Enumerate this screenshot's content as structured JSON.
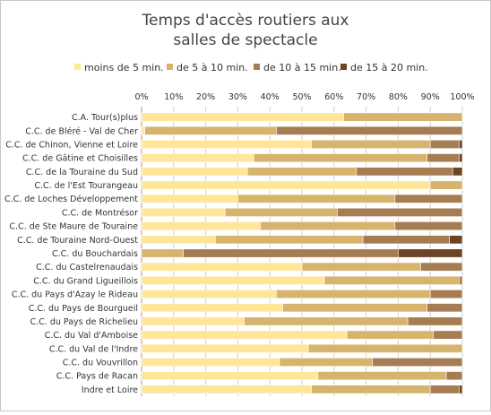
{
  "chart_data": {
    "type": "bar",
    "orientation": "horizontal",
    "stacked": "percent",
    "title": [
      "Temps d'accès routiers aux",
      "salles de spectacle"
    ],
    "xlabel": "",
    "ylabel": "",
    "xlim": [
      0,
      100
    ],
    "x_ticks": [
      "0%",
      "10%",
      "20%",
      "30%",
      "40%",
      "50%",
      "60%",
      "70%",
      "80%",
      "90%",
      "100%"
    ],
    "grid": true,
    "legend_position": "top",
    "categories": [
      "C.A. Tour(s)plus",
      "C.C. de Bléré - Val de Cher",
      "C.C. de Chinon, Vienne et Loire",
      "C.C. de Gâtine et Choisilles",
      "C.C. de la Touraine du Sud",
      "C.C. de l'Est Tourangeau",
      "C.C. de Loches Développement",
      "C.C. de Montrésor",
      "C.C. de Ste Maure de Touraine",
      "C.C. de Touraine Nord-Ouest",
      "C.C. du Bouchardais",
      "C.C. du Castelrenaudais",
      "C.C. du Grand Ligueillois",
      "C.C. du Pays d'Azay le Rideau",
      "C.C. du Pays de Bourgueil",
      "C.C. du Pays de Richelieu",
      "C.C. du Val d'Amboise",
      "C.C. du Val de l'Indre",
      "C.C. du Vouvrillon",
      "C.C. Pays de Racan",
      "Indre et Loire"
    ],
    "series": [
      {
        "name": "moins de 5 min.",
        "color": "#ffe699",
        "values": [
          63,
          1,
          53,
          35,
          33,
          90,
          30,
          26,
          37,
          23,
          0,
          50,
          57,
          42,
          44,
          32,
          64,
          52,
          43,
          55,
          53
        ]
      },
      {
        "name": "de 5 à 10 min.",
        "color": "#d6b46d",
        "values": [
          37,
          41,
          37,
          54,
          34,
          10,
          49,
          35,
          42,
          46,
          13,
          37,
          42,
          48,
          45,
          51,
          27,
          48,
          29,
          40,
          37
        ]
      },
      {
        "name": "de 10 à 15 min.",
        "color": "#a67c52",
        "values": [
          0,
          58,
          9,
          10,
          30,
          0,
          21,
          39,
          21,
          27,
          67,
          13,
          1,
          10,
          11,
          17,
          9,
          0,
          28,
          5,
          9
        ]
      },
      {
        "name": "de 15 à 20 min.",
        "color": "#6b4423",
        "values": [
          0,
          0,
          1,
          1,
          3,
          0,
          0,
          0,
          0,
          4,
          20,
          0,
          0,
          0,
          0,
          0,
          0,
          0,
          0,
          0,
          1
        ]
      }
    ]
  }
}
